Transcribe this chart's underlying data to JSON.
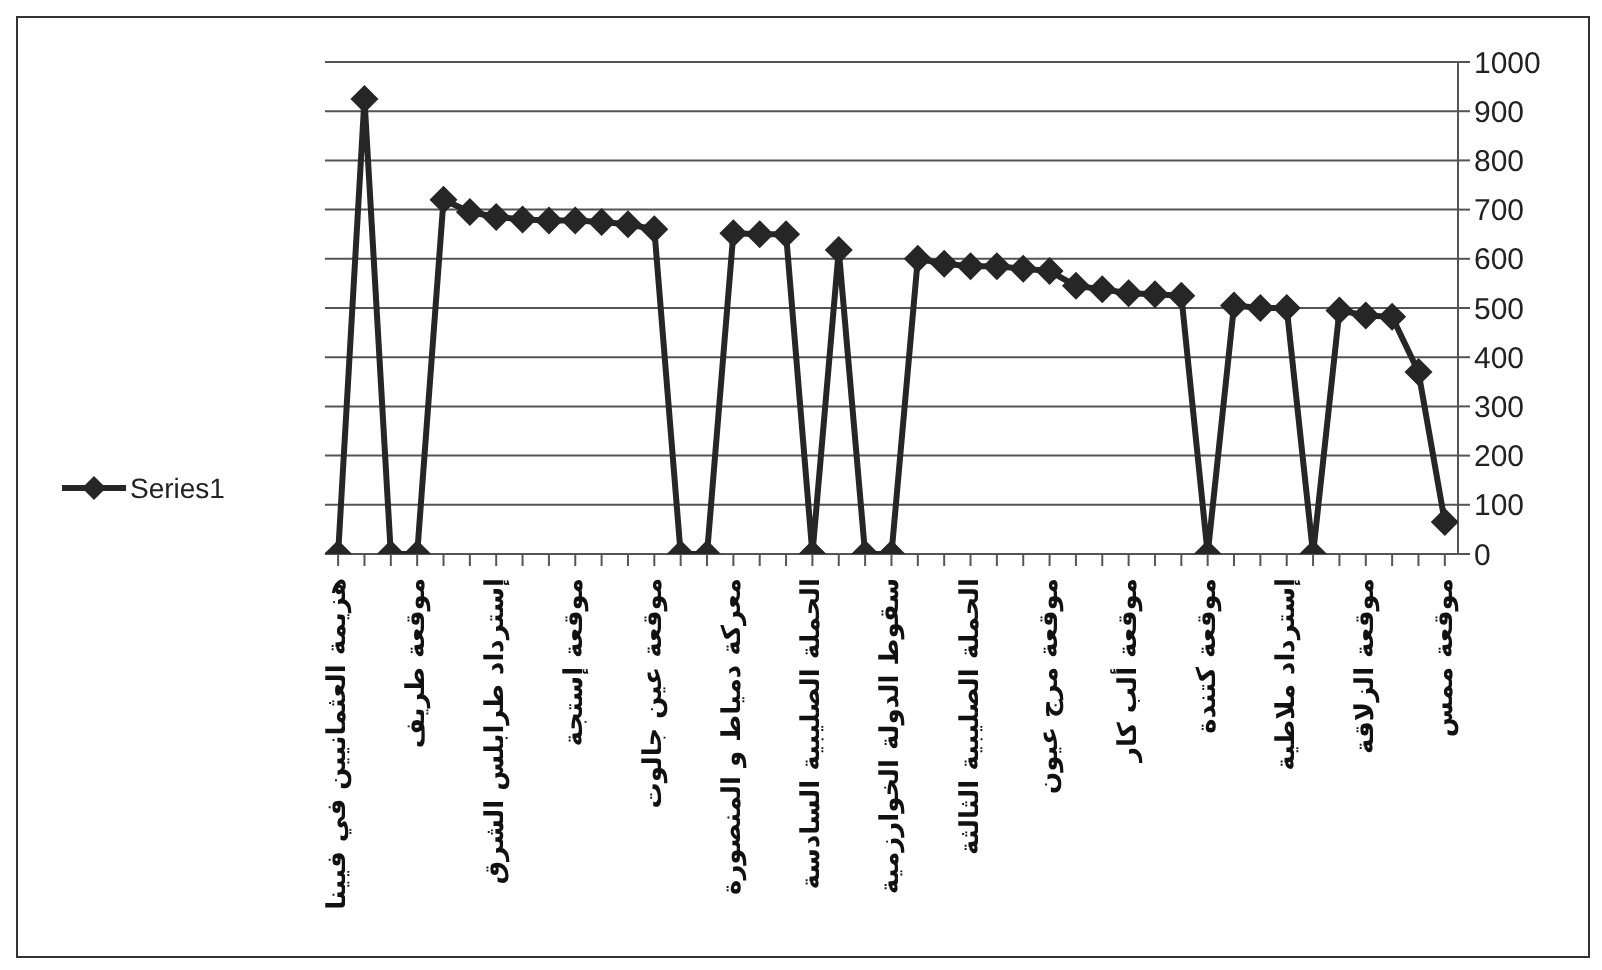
{
  "chart_data": {
    "type": "line",
    "categories": [
      "هزيمة العثمانيين في فيينا",
      null,
      null,
      "موقعة طريف",
      null,
      null,
      "إسترداد طرابلس الشرق",
      null,
      null,
      "موقعة إستجة",
      null,
      null,
      "موقعة عين جالوت",
      null,
      null,
      "معركة دمياط و المنصورة",
      null,
      null,
      "الحملة الصليبية السادسة",
      null,
      null,
      "سقوط الدولة الخوارزمية",
      null,
      null,
      "الحملة الصليبية الثالثة",
      null,
      null,
      "موقعة مرج عيون",
      null,
      null,
      "موقعة ألب كار",
      null,
      null,
      "موقعة كتندة",
      null,
      null,
      "إسترداد ملاطية",
      null,
      null,
      "موقعة الزلاقة",
      null,
      null,
      "موقعة ممس"
    ],
    "series": [
      {
        "name": "Series1",
        "color": "#262626",
        "values": [
          0,
          925,
          0,
          0,
          720,
          695,
          685,
          680,
          678,
          678,
          675,
          670,
          660,
          0,
          0,
          652,
          650,
          650,
          0,
          618,
          0,
          0,
          600,
          590,
          585,
          585,
          580,
          575,
          545,
          538,
          530,
          528,
          525,
          0,
          505,
          500,
          500,
          0,
          495,
          485,
          482,
          370,
          65
        ]
      }
    ],
    "ylim": [
      0,
      1000
    ],
    "yticks": [
      0,
      100,
      200,
      300,
      400,
      500,
      600,
      700,
      800,
      900,
      1000
    ],
    "grid": "y",
    "legend": "left",
    "marker": "diamond",
    "line_style": "solid"
  }
}
